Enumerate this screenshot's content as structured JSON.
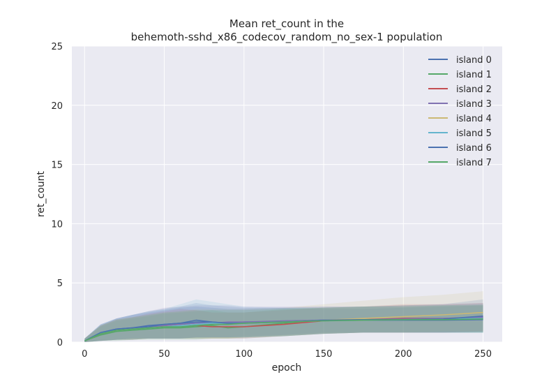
{
  "chart_data": {
    "type": "line",
    "title_lines": [
      "Mean ret_count in the",
      "behemoth-sshd_x86_codecov_random_no_sex-1 population"
    ],
    "xlabel": "epoch",
    "ylabel": "ret_count",
    "xlim": [
      -8,
      262
    ],
    "ylim": [
      0,
      25
    ],
    "xticks": [
      0,
      50,
      100,
      150,
      200,
      250
    ],
    "yticks": [
      0,
      5,
      10,
      15,
      20,
      25
    ],
    "grid": true,
    "legend_position": "top-right",
    "colors": {
      "plot_background": "#eaeaf2",
      "grid": "#ffffff"
    },
    "series": [
      {
        "name": "island 0",
        "color": "#4c72b0",
        "x": [
          0,
          10,
          20,
          30,
          40,
          50,
          60,
          70,
          80,
          90,
          100,
          125,
          150,
          175,
          200,
          225,
          250
        ],
        "values": [
          0.1,
          0.8,
          1.1,
          1.2,
          1.4,
          1.5,
          1.6,
          1.85,
          1.7,
          1.6,
          1.7,
          1.75,
          1.85,
          1.85,
          1.85,
          1.85,
          1.9
        ],
        "lower": [
          0.0,
          0.1,
          0.2,
          0.3,
          0.3,
          0.3,
          0.3,
          0.4,
          0.4,
          0.4,
          0.5,
          0.6,
          0.8,
          0.8,
          0.8,
          0.8,
          0.8
        ],
        "upper": [
          0.3,
          1.5,
          2.0,
          2.3,
          2.6,
          2.8,
          3.0,
          3.3,
          3.1,
          3.0,
          2.9,
          2.9,
          2.8,
          2.8,
          2.9,
          3.0,
          3.1
        ]
      },
      {
        "name": "island 1",
        "color": "#55a868",
        "x": [
          0,
          10,
          20,
          30,
          40,
          50,
          60,
          70,
          80,
          90,
          100,
          125,
          150,
          175,
          200,
          225,
          250
        ],
        "values": [
          0.1,
          0.6,
          0.9,
          1.0,
          1.1,
          1.2,
          1.2,
          1.3,
          1.4,
          1.2,
          1.3,
          1.6,
          1.8,
          1.9,
          1.9,
          1.95,
          2.0
        ],
        "lower": [
          0.0,
          0.1,
          0.1,
          0.2,
          0.2,
          0.2,
          0.2,
          0.2,
          0.3,
          0.3,
          0.3,
          0.5,
          0.7,
          0.8,
          0.8,
          0.8,
          0.8
        ],
        "upper": [
          0.3,
          1.3,
          1.8,
          2.0,
          2.2,
          2.4,
          2.5,
          2.6,
          2.7,
          2.5,
          2.5,
          2.8,
          2.9,
          3.0,
          3.1,
          3.1,
          3.2
        ]
      },
      {
        "name": "island 2",
        "color": "#c44e52",
        "x": [
          0,
          10,
          20,
          30,
          40,
          50,
          60,
          70,
          80,
          90,
          100,
          125,
          150,
          175,
          200,
          225,
          250
        ],
        "values": [
          0.1,
          0.7,
          1.0,
          1.1,
          1.2,
          1.4,
          1.5,
          1.4,
          1.3,
          1.3,
          1.3,
          1.5,
          1.8,
          1.9,
          2.0,
          2.0,
          2.1
        ],
        "lower": [
          0.0,
          0.1,
          0.2,
          0.2,
          0.3,
          0.3,
          0.3,
          0.3,
          0.3,
          0.3,
          0.3,
          0.5,
          0.7,
          0.8,
          0.8,
          0.8,
          0.9
        ],
        "upper": [
          0.3,
          1.4,
          1.9,
          2.1,
          2.4,
          2.6,
          2.8,
          2.7,
          2.5,
          2.5,
          2.5,
          2.7,
          2.9,
          3.0,
          3.2,
          3.2,
          3.3
        ]
      },
      {
        "name": "island 3",
        "color": "#8172b2",
        "x": [
          0,
          10,
          20,
          30,
          40,
          50,
          60,
          70,
          80,
          90,
          100,
          125,
          150,
          175,
          200,
          225,
          250
        ],
        "values": [
          0.1,
          0.7,
          1.0,
          1.1,
          1.3,
          1.4,
          1.5,
          1.6,
          1.6,
          1.7,
          1.7,
          1.8,
          1.85,
          1.9,
          1.95,
          2.0,
          2.1
        ],
        "lower": [
          0.0,
          0.1,
          0.2,
          0.2,
          0.3,
          0.3,
          0.3,
          0.4,
          0.4,
          0.4,
          0.4,
          0.6,
          0.7,
          0.8,
          0.8,
          0.8,
          0.9
        ],
        "upper": [
          0.3,
          1.4,
          2.0,
          2.3,
          2.6,
          2.9,
          3.0,
          3.1,
          3.1,
          3.1,
          3.0,
          3.0,
          3.0,
          3.0,
          3.1,
          3.2,
          3.3
        ]
      },
      {
        "name": "island 4",
        "color": "#ccb974",
        "x": [
          0,
          10,
          20,
          30,
          40,
          50,
          60,
          70,
          80,
          90,
          100,
          125,
          150,
          175,
          200,
          225,
          250
        ],
        "values": [
          0.1,
          0.7,
          1.0,
          1.1,
          1.2,
          1.3,
          1.4,
          1.5,
          1.5,
          1.5,
          1.6,
          1.7,
          1.85,
          2.0,
          2.15,
          2.3,
          2.5
        ],
        "lower": [
          0.0,
          0.1,
          0.2,
          0.2,
          0.3,
          0.3,
          0.3,
          0.3,
          0.3,
          0.3,
          0.4,
          0.5,
          0.7,
          0.8,
          0.8,
          0.9,
          0.9
        ],
        "upper": [
          0.3,
          1.4,
          1.9,
          2.1,
          2.3,
          2.5,
          2.6,
          2.8,
          2.8,
          2.8,
          2.8,
          2.9,
          3.2,
          3.5,
          3.8,
          4.0,
          4.3
        ]
      },
      {
        "name": "island 5",
        "color": "#64b5cd",
        "x": [
          0,
          10,
          20,
          30,
          40,
          50,
          60,
          70,
          80,
          90,
          100,
          125,
          150,
          175,
          200,
          225,
          250
        ],
        "values": [
          0.1,
          0.8,
          1.0,
          1.1,
          1.2,
          1.3,
          1.4,
          1.5,
          1.6,
          1.6,
          1.6,
          1.7,
          1.8,
          1.85,
          1.9,
          1.95,
          2.0
        ],
        "lower": [
          0.0,
          0.1,
          0.2,
          0.2,
          0.3,
          0.3,
          0.3,
          0.3,
          0.4,
          0.4,
          0.4,
          0.5,
          0.7,
          0.8,
          0.8,
          0.8,
          0.8
        ],
        "upper": [
          0.3,
          1.5,
          2.0,
          2.3,
          2.6,
          2.8,
          3.2,
          3.6,
          3.4,
          3.2,
          3.0,
          2.9,
          2.9,
          3.0,
          3.0,
          3.1,
          3.2
        ]
      },
      {
        "name": "island 6",
        "color": "#4c72b0",
        "x": [
          0,
          10,
          20,
          30,
          40,
          50,
          60,
          70,
          80,
          90,
          100,
          125,
          150,
          175,
          200,
          225,
          250
        ],
        "values": [
          0.1,
          0.8,
          1.1,
          1.2,
          1.3,
          1.5,
          1.6,
          1.7,
          1.7,
          1.6,
          1.6,
          1.7,
          1.85,
          1.9,
          1.9,
          1.95,
          2.2
        ],
        "lower": [
          0.0,
          0.1,
          0.2,
          0.3,
          0.3,
          0.3,
          0.3,
          0.4,
          0.4,
          0.4,
          0.4,
          0.5,
          0.7,
          0.8,
          0.8,
          0.8,
          0.8
        ],
        "upper": [
          0.3,
          1.5,
          2.0,
          2.3,
          2.5,
          2.7,
          2.9,
          3.0,
          2.9,
          2.8,
          2.8,
          2.9,
          3.0,
          3.0,
          3.1,
          3.2,
          3.6
        ]
      },
      {
        "name": "island 7",
        "color": "#55a868",
        "x": [
          0,
          10,
          20,
          30,
          40,
          50,
          60,
          70,
          80,
          90,
          100,
          125,
          150,
          175,
          200,
          225,
          250
        ],
        "values": [
          0.1,
          0.7,
          1.0,
          1.1,
          1.2,
          1.3,
          1.3,
          1.4,
          1.5,
          1.5,
          1.6,
          1.7,
          1.8,
          1.85,
          1.9,
          1.9,
          1.95
        ],
        "lower": [
          0.0,
          0.1,
          0.2,
          0.2,
          0.3,
          0.3,
          0.3,
          0.3,
          0.3,
          0.3,
          0.4,
          0.5,
          0.7,
          0.8,
          0.8,
          0.8,
          0.8
        ],
        "upper": [
          0.3,
          1.4,
          1.9,
          2.1,
          2.3,
          2.5,
          2.6,
          2.7,
          2.7,
          2.7,
          2.7,
          2.8,
          2.9,
          3.0,
          3.0,
          3.1,
          3.1
        ]
      }
    ]
  }
}
